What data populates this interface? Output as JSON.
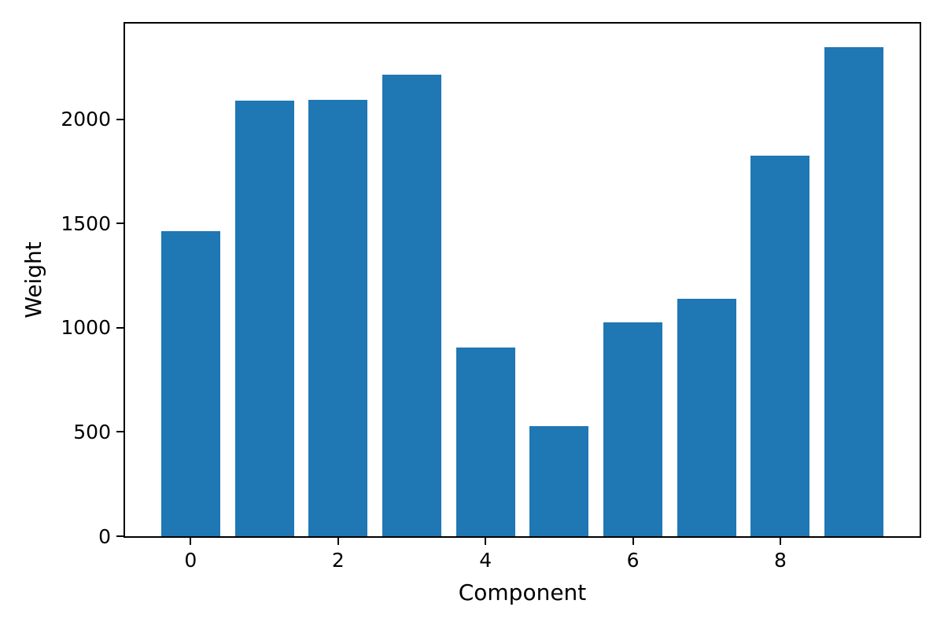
{
  "chart_data": {
    "type": "bar",
    "title": "",
    "xlabel": "Component",
    "ylabel": "Weight",
    "categories": [
      0,
      1,
      2,
      3,
      4,
      5,
      6,
      7,
      8,
      9
    ],
    "values": [
      1465,
      2090,
      2095,
      2215,
      905,
      530,
      1025,
      1140,
      1825,
      2345
    ],
    "bar_color": "#1f77b4",
    "bar_width": 0.8,
    "xticks": [
      0,
      2,
      4,
      6,
      8
    ],
    "yticks": [
      0,
      500,
      1000,
      1500,
      2000
    ],
    "xlim": [
      -0.89,
      9.89
    ],
    "ylim": [
      0,
      2460
    ],
    "grid": false,
    "legend_position": "none",
    "axis_color": "#000000",
    "background_color": "#ffffff"
  }
}
